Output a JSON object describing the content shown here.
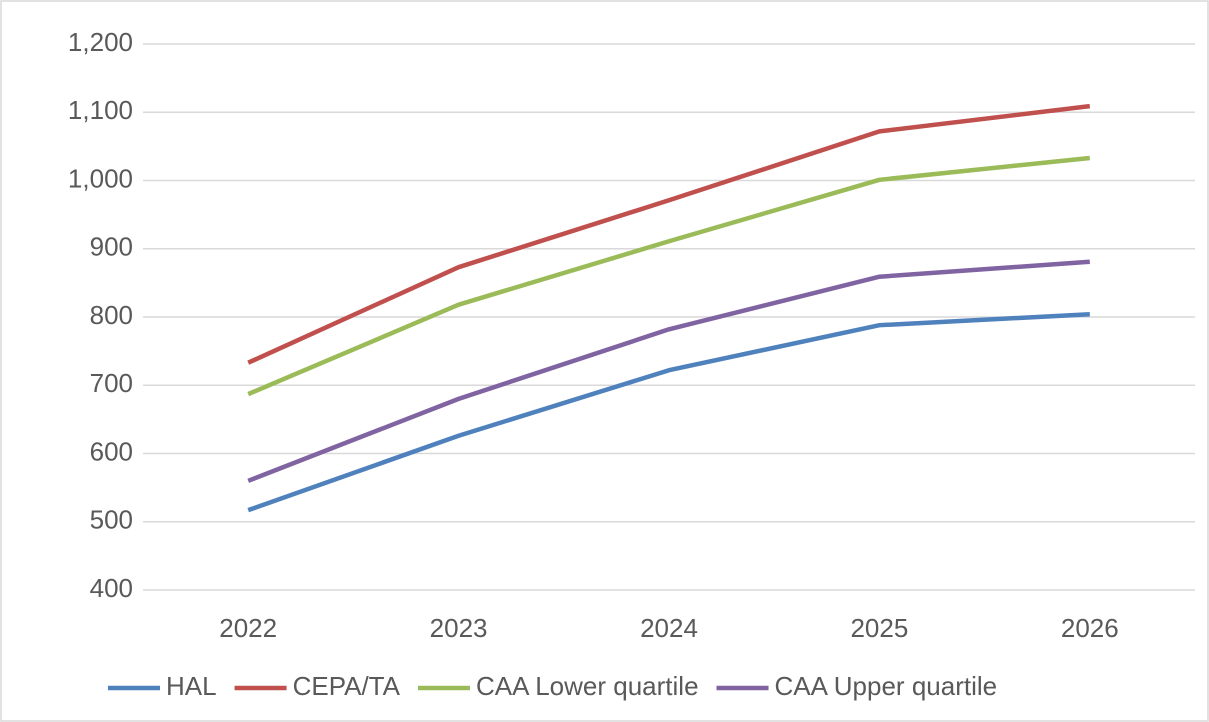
{
  "chart_data": {
    "type": "line",
    "categories": [
      "2022",
      "2023",
      "2024",
      "2025",
      "2026"
    ],
    "series": [
      {
        "name": "HAL",
        "color": "#4f81bd",
        "values": [
          517,
          626,
          722,
          788,
          804
        ]
      },
      {
        "name": "CEPA/TA",
        "color": "#c0504d",
        "values": [
          733,
          873,
          971,
          1072,
          1109
        ]
      },
      {
        "name": "CAA Lower quartile",
        "color": "#9bbb59",
        "values": [
          687,
          818,
          911,
          1001,
          1033
        ]
      },
      {
        "name": "CAA Upper quartile",
        "color": "#8064a2",
        "values": [
          560,
          680,
          782,
          859,
          881
        ]
      }
    ],
    "ylim": [
      400,
      1200
    ],
    "yticks": [
      400,
      500,
      600,
      700,
      800,
      900,
      {
        "value": 1000,
        "label": "1,000"
      },
      {
        "value": 1100,
        "label": "1,100"
      },
      {
        "value": 1200,
        "label": "1,200"
      }
    ],
    "grid": true,
    "legend": "bottom"
  }
}
